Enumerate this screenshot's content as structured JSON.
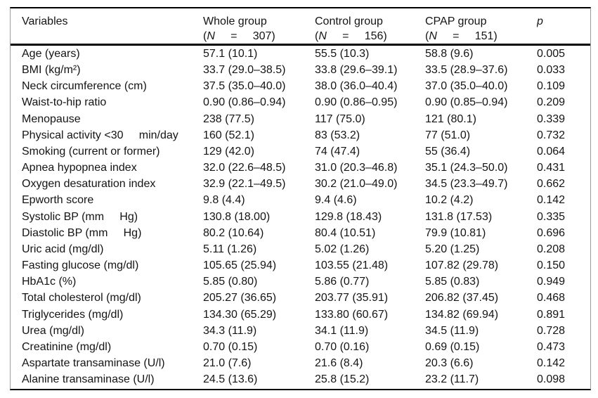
{
  "table": {
    "header": {
      "variables_label": "Variables",
      "groups": [
        {
          "name": "Whole group",
          "paren_open": "(",
          "n_symbol": "N",
          "n_rest": "     =     307)"
        },
        {
          "name": "Control group",
          "paren_open": "(",
          "n_symbol": "N",
          "n_rest": "     =     156)"
        },
        {
          "name": "CPAP group",
          "paren_open": "(",
          "n_symbol": "N",
          "n_rest": "     =     151)"
        }
      ],
      "p_label": "p"
    },
    "rows": [
      {
        "variable": "Age (years)",
        "whole": "57.1 (10.1)",
        "control": "55.5 (10.3)",
        "cpap": "58.8 (9.6)",
        "p": "0.005"
      },
      {
        "variable": "BMI (kg/m²)",
        "whole": "33.7 (29.0–38.5)",
        "control": "33.8 (29.6–39.1)",
        "cpap": "33.5 (28.9–37.6)",
        "p": "0.033"
      },
      {
        "variable": "Neck circumference (cm)",
        "whole": "37.5 (35.0–40.0)",
        "control": "38.0 (36.0–40.4)",
        "cpap": "37.0 (35.0–40.0)",
        "p": "0.109"
      },
      {
        "variable": "Waist-to-hip ratio",
        "whole": "0.90 (0.86–0.94)",
        "control": "0.90 (0.86–0.95)",
        "cpap": "0.90 (0.85–0.94)",
        "p": "0.209"
      },
      {
        "variable": "Menopause",
        "whole": "238 (77.5)",
        "control": "117 (75.0)",
        "cpap": "121 (80.1)",
        "p": "0.339"
      },
      {
        "variable": "Physical activity <30     min/day",
        "whole": "160 (52.1)",
        "control": "83 (53.2)",
        "cpap": "77 (51.0)",
        "p": "0.732"
      },
      {
        "variable": "Smoking (current or former)",
        "whole": "129 (42.0)",
        "control": "74 (47.4)",
        "cpap": "55 (36.4)",
        "p": "0.064"
      },
      {
        "variable": "Apnea hypopnea index",
        "whole": "32.0 (22.6–48.5)",
        "control": "31.0 (20.3–46.8)",
        "cpap": "35.1 (24.3–50.0)",
        "p": "0.431"
      },
      {
        "variable": "Oxygen desaturation index",
        "whole": "32.9 (22.1–49.5)",
        "control": "30.2 (21.0–49.0)",
        "cpap": "34.5 (23.3–49.7)",
        "p": "0.662"
      },
      {
        "variable": "Epworth score",
        "whole": "9.8 (4.4)",
        "control": "9.4 (4.6)",
        "cpap": "10.2 (4.2)",
        "p": "0.142"
      },
      {
        "variable": "Systolic BP (mm     Hg)",
        "whole": "130.8 (18.00)",
        "control": "129.8 (18.43)",
        "cpap": "131.8 (17.53)",
        "p": "0.335"
      },
      {
        "variable": "Diastolic BP (mm     Hg)",
        "whole": "80.2 (10.64)",
        "control": "80.4 (10.51)",
        "cpap": "79.9 (10.81)",
        "p": "0.696"
      },
      {
        "variable": "Uric acid (mg/dl)",
        "whole": "5.11 (1.26)",
        "control": "5.02 (1.26)",
        "cpap": "5.20 (1.25)",
        "p": "0.208"
      },
      {
        "variable": "Fasting glucose (mg/dl)",
        "whole": "105.65 (25.94)",
        "control": "103.55 (21.48)",
        "cpap": "107.82 (29.78)",
        "p": "0.150"
      },
      {
        "variable": "HbA1c (%)",
        "whole": "5.85 (0.80)",
        "control": "5.86 (0.77)",
        "cpap": "5.85 (0.83)",
        "p": "0.949"
      },
      {
        "variable": "Total cholesterol (mg/dl)",
        "whole": "205.27 (36.65)",
        "control": "203.77 (35.91)",
        "cpap": "206.82 (37.45)",
        "p": "0.468"
      },
      {
        "variable": "Triglycerides (mg/dl)",
        "whole": "134.30 (65.29)",
        "control": "133.80 (60.67)",
        "cpap": "134.82 (69.94)",
        "p": "0.891"
      },
      {
        "variable": "Urea (mg/dl)",
        "whole": "34.3 (11.9)",
        "control": "34.1 (11.9)",
        "cpap": "34.5 (11.9)",
        "p": "0.728"
      },
      {
        "variable": "Creatinine (mg/dl)",
        "whole": "0.70 (0.15)",
        "control": "0.70 (0.16)",
        "cpap": "0.69 (0.15)",
        "p": "0.473"
      },
      {
        "variable": "Aspartate transaminase (U/l)",
        "whole": "21.0 (7.6)",
        "control": "21.6 (8.4)",
        "cpap": "20.3 (6.6)",
        "p": "0.142"
      },
      {
        "variable": "Alanine transaminase (U/l)",
        "whole": "24.5 (13.6)",
        "control": "25.8 (15.2)",
        "cpap": "23.2 (11.7)",
        "p": "0.098"
      }
    ]
  }
}
